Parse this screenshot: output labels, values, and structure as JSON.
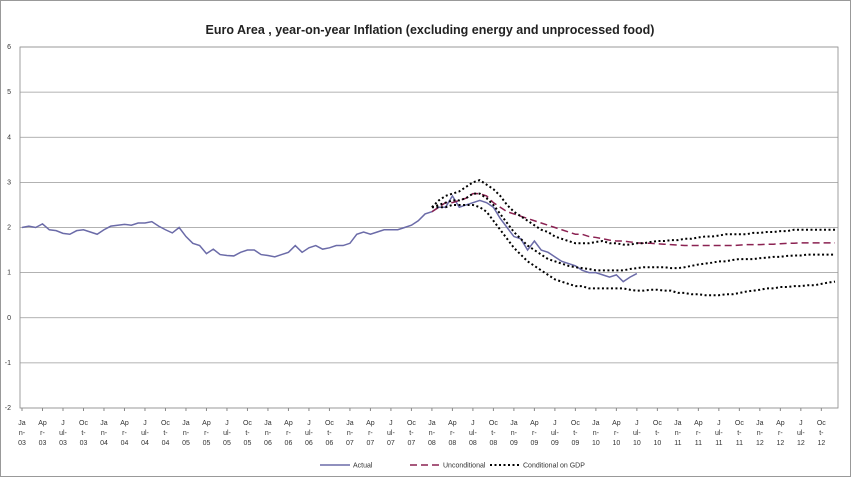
{
  "chart_data": {
    "type": "line",
    "title": "Euro Area , year-on-year Inflation (excluding energy and unprocessed food)",
    "categories": [
      "Jan-03",
      null,
      null,
      "Apr-03",
      null,
      null,
      "Jul-03",
      null,
      null,
      "Oct-03",
      null,
      null,
      "Jan-04",
      null,
      null,
      "Apr-04",
      null,
      null,
      "Jul-04",
      null,
      null,
      "Oct-04",
      null,
      null,
      "Jan-05",
      null,
      null,
      "Apr-05",
      null,
      null,
      "Jul-05",
      null,
      null,
      "Oct-05",
      null,
      null,
      "Jan-06",
      null,
      null,
      "Apr-06",
      null,
      null,
      "Jul-06",
      null,
      null,
      "Oct-06",
      null,
      null,
      "Jan-07",
      null,
      null,
      "Apr-07",
      null,
      null,
      "Jul-07",
      null,
      null,
      "Oct-07",
      null,
      null,
      "Jan-08",
      null,
      null,
      "Apr-08",
      null,
      null,
      "Jul-08",
      null,
      null,
      "Oct-08",
      null,
      null,
      "Jan-09",
      null,
      null,
      "Apr-09",
      null,
      null,
      "Jul-09",
      null,
      null,
      "Oct-09",
      null,
      null,
      "Jan-10",
      null,
      null,
      "Apr-10",
      null,
      null,
      "Jul-10",
      null,
      null,
      "Oct-10",
      null,
      null,
      "Jan-11",
      null,
      null,
      "Apr-11",
      null,
      null,
      "Jul-11",
      null,
      null,
      "Oct-11",
      null,
      null,
      "Jan-12",
      null,
      null,
      "Apr-12",
      null,
      null,
      "Jul-12",
      null,
      null,
      "Oct-12",
      null,
      null
    ],
    "series": [
      {
        "name": "Actual",
        "color": "#6b6ba8",
        "dash": "solid",
        "values": [
          2.0,
          2.03,
          2.0,
          2.08,
          1.95,
          1.93,
          1.87,
          1.85,
          1.93,
          1.95,
          1.9,
          1.85,
          1.95,
          2.03,
          2.05,
          2.07,
          2.05,
          2.1,
          2.1,
          2.13,
          2.03,
          1.95,
          1.88,
          2.0,
          1.8,
          1.65,
          1.6,
          1.42,
          1.52,
          1.4,
          1.38,
          1.37,
          1.45,
          1.5,
          1.5,
          1.4,
          1.38,
          1.35,
          1.4,
          1.45,
          1.6,
          1.45,
          1.55,
          1.6,
          1.52,
          1.55,
          1.6,
          1.6,
          1.65,
          1.85,
          1.9,
          1.85,
          1.9,
          1.95,
          1.95,
          1.95,
          2.0,
          2.05,
          2.15,
          2.3,
          2.35,
          2.45,
          2.45,
          2.7,
          2.45,
          2.5,
          2.55,
          2.6,
          2.55,
          2.45,
          2.2,
          2.0,
          1.8,
          1.75,
          1.5,
          1.7,
          1.5,
          1.45,
          1.35,
          1.25,
          1.2,
          1.15,
          1.05,
          1.0,
          1.0,
          0.95,
          0.9,
          0.95,
          0.8,
          0.9,
          0.98,
          null,
          null,
          null,
          null,
          null,
          null,
          null,
          null,
          null,
          null,
          null,
          null,
          null,
          null,
          null,
          null,
          null,
          null,
          null,
          null,
          null,
          null,
          null,
          null,
          null,
          null,
          null,
          null,
          null
        ]
      },
      {
        "name": "Unconditional",
        "color": "#8b2252",
        "dash": "dashed",
        "values": [
          null,
          null,
          null,
          null,
          null,
          null,
          null,
          null,
          null,
          null,
          null,
          null,
          null,
          null,
          null,
          null,
          null,
          null,
          null,
          null,
          null,
          null,
          null,
          null,
          null,
          null,
          null,
          null,
          null,
          null,
          null,
          null,
          null,
          null,
          null,
          null,
          null,
          null,
          null,
          null,
          null,
          null,
          null,
          null,
          null,
          null,
          null,
          null,
          null,
          null,
          null,
          null,
          null,
          null,
          null,
          null,
          null,
          null,
          null,
          null,
          2.35,
          2.45,
          2.55,
          2.55,
          2.6,
          2.65,
          2.75,
          2.75,
          2.7,
          2.55,
          2.45,
          2.35,
          2.3,
          2.25,
          2.2,
          2.15,
          2.1,
          2.05,
          2.0,
          1.95,
          1.9,
          1.85,
          1.85,
          1.8,
          1.78,
          1.75,
          1.72,
          1.7,
          1.7,
          1.68,
          1.66,
          1.65,
          1.65,
          1.64,
          1.63,
          1.62,
          1.61,
          1.6,
          1.6,
          1.6,
          1.6,
          1.6,
          1.6,
          1.6,
          1.6,
          1.61,
          1.62,
          1.62,
          1.62,
          1.63,
          1.63,
          1.64,
          1.65,
          1.65,
          1.66,
          1.66,
          1.66,
          1.66,
          1.66,
          1.66
        ]
      },
      {
        "name": "Conditional on GDP",
        "color": "#000000",
        "dash": "dotted",
        "values": [
          null,
          null,
          null,
          null,
          null,
          null,
          null,
          null,
          null,
          null,
          null,
          null,
          null,
          null,
          null,
          null,
          null,
          null,
          null,
          null,
          null,
          null,
          null,
          null,
          null,
          null,
          null,
          null,
          null,
          null,
          null,
          null,
          null,
          null,
          null,
          null,
          null,
          null,
          null,
          null,
          null,
          null,
          null,
          null,
          null,
          null,
          null,
          null,
          null,
          null,
          null,
          null,
          null,
          null,
          null,
          null,
          null,
          null,
          null,
          null,
          2.45,
          2.5,
          2.55,
          2.6,
          2.6,
          2.65,
          2.75,
          2.75,
          2.65,
          2.5,
          2.3,
          2.1,
          1.9,
          1.75,
          1.6,
          1.5,
          1.4,
          1.3,
          1.25,
          1.2,
          1.15,
          1.12,
          1.1,
          1.08,
          1.05,
          1.05,
          1.05,
          1.05,
          1.05,
          1.08,
          1.1,
          1.12,
          1.12,
          1.12,
          1.12,
          1.1,
          1.1,
          1.12,
          1.15,
          1.18,
          1.2,
          1.22,
          1.25,
          1.25,
          1.28,
          1.3,
          1.3,
          1.3,
          1.32,
          1.33,
          1.35,
          1.35,
          1.37,
          1.38,
          1.38,
          1.4,
          1.4,
          1.4,
          1.4,
          1.4
        ],
        "upper": [
          null,
          null,
          null,
          null,
          null,
          null,
          null,
          null,
          null,
          null,
          null,
          null,
          null,
          null,
          null,
          null,
          null,
          null,
          null,
          null,
          null,
          null,
          null,
          null,
          null,
          null,
          null,
          null,
          null,
          null,
          null,
          null,
          null,
          null,
          null,
          null,
          null,
          null,
          null,
          null,
          null,
          null,
          null,
          null,
          null,
          null,
          null,
          null,
          null,
          null,
          null,
          null,
          null,
          null,
          null,
          null,
          null,
          null,
          null,
          null,
          2.45,
          2.6,
          2.7,
          2.75,
          2.8,
          2.9,
          3.0,
          3.05,
          2.95,
          2.85,
          2.7,
          2.5,
          2.35,
          2.25,
          2.15,
          2.05,
          1.95,
          1.9,
          1.8,
          1.75,
          1.7,
          1.65,
          1.65,
          1.65,
          1.68,
          1.7,
          1.65,
          1.65,
          1.62,
          1.62,
          1.65,
          1.65,
          1.68,
          1.7,
          1.7,
          1.72,
          1.72,
          1.75,
          1.75,
          1.78,
          1.8,
          1.8,
          1.82,
          1.85,
          1.85,
          1.85,
          1.85,
          1.88,
          1.88,
          1.9,
          1.9,
          1.92,
          1.92,
          1.95,
          1.95,
          1.95,
          1.95,
          1.95,
          1.95,
          1.95
        ],
        "lower": [
          null,
          null,
          null,
          null,
          null,
          null,
          null,
          null,
          null,
          null,
          null,
          null,
          null,
          null,
          null,
          null,
          null,
          null,
          null,
          null,
          null,
          null,
          null,
          null,
          null,
          null,
          null,
          null,
          null,
          null,
          null,
          null,
          null,
          null,
          null,
          null,
          null,
          null,
          null,
          null,
          null,
          null,
          null,
          null,
          null,
          null,
          null,
          null,
          null,
          null,
          null,
          null,
          null,
          null,
          null,
          null,
          null,
          null,
          null,
          null,
          2.45,
          2.45,
          2.45,
          2.5,
          2.5,
          2.5,
          2.5,
          2.45,
          2.35,
          2.15,
          1.95,
          1.75,
          1.55,
          1.4,
          1.25,
          1.15,
          1.05,
          0.95,
          0.85,
          0.8,
          0.75,
          0.7,
          0.7,
          0.65,
          0.65,
          0.65,
          0.65,
          0.65,
          0.65,
          0.62,
          0.6,
          0.6,
          0.62,
          0.62,
          0.6,
          0.6,
          0.55,
          0.55,
          0.52,
          0.52,
          0.5,
          0.5,
          0.5,
          0.52,
          0.52,
          0.55,
          0.58,
          0.6,
          0.62,
          0.65,
          0.65,
          0.68,
          0.68,
          0.7,
          0.7,
          0.72,
          0.72,
          0.75,
          0.78,
          0.8
        ]
      }
    ],
    "ylim": [
      -2,
      6
    ],
    "yticks": [
      -2,
      -1,
      0,
      1,
      2,
      3,
      4,
      5,
      6
    ],
    "grid": true,
    "legend": "bottom"
  }
}
